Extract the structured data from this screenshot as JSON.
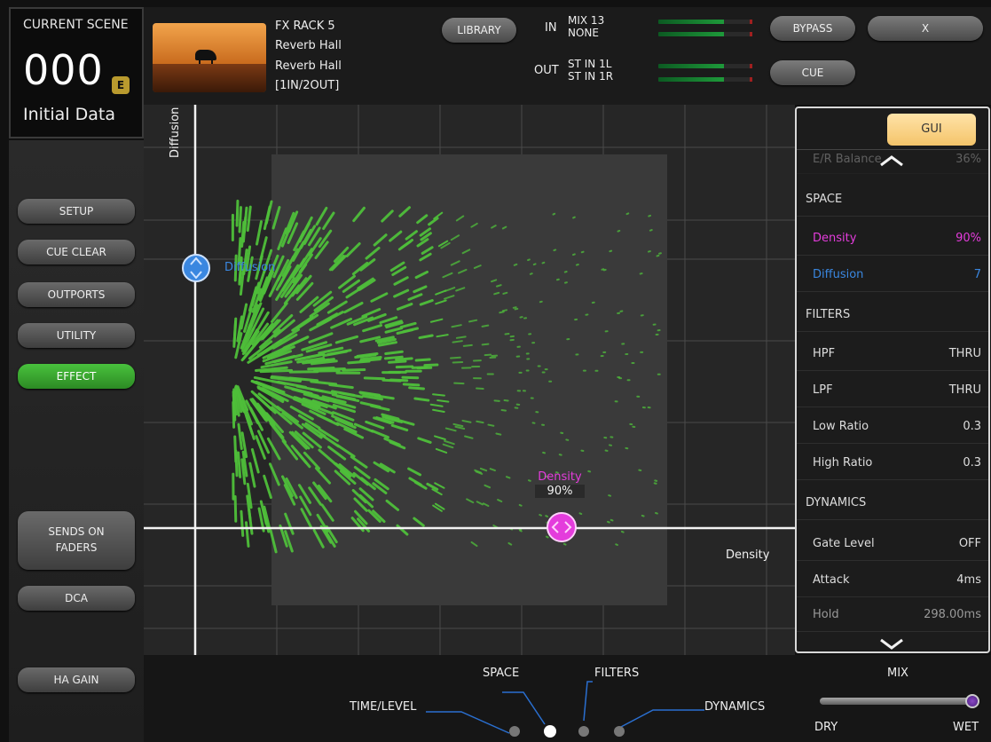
{
  "scene": {
    "label": "CURRENT SCENE",
    "number": "000",
    "badge": "E",
    "name": "Initial Data"
  },
  "left_buttons": {
    "setup": "SETUP",
    "cue_clear": "CUE CLEAR",
    "outports": "OUTPORTS",
    "utility": "UTILITY",
    "effect": "EFFECT",
    "sends_on_faders_1": "SENDS ON",
    "sends_on_faders_2": "FADERS",
    "dca": "DCA",
    "ha_gain": "HA GAIN"
  },
  "header": {
    "rack": "FX RACK 5",
    "type": "Reverb Hall",
    "preset": "Reverb Hall",
    "io_config": "[1IN/2OUT]",
    "library": "LIBRARY",
    "in_label": "IN",
    "in_1": "MIX 13",
    "in_2": "NONE",
    "out_label": "OUT",
    "out_1": "ST IN 1L",
    "out_2": "ST IN 1R",
    "bypass": "BYPASS",
    "close": "X",
    "cue": "CUE"
  },
  "graph": {
    "y_axis": "Diffusion",
    "x_axis": "Density",
    "diffusion_handle_label": "Diffusion",
    "density_handle_label": "Density",
    "density_handle_value": "90%",
    "density_level": 0.9,
    "diffusion_level": 7,
    "colors": {
      "reverb": "#4fbf3a",
      "density": "#e43cdc",
      "diffusion": "#3a87e0"
    }
  },
  "panel": {
    "gui_button": "GUI",
    "partial_row_k": "E/R Balance",
    "partial_row_v": "36%",
    "space_head": "SPACE",
    "density_k": "Density",
    "density_v": "90%",
    "diffusion_k": "Diffusion",
    "diffusion_v": "7",
    "filters_head": "FILTERS",
    "hpf_k": "HPF",
    "hpf_v": "THRU",
    "lpf_k": "LPF",
    "lpf_v": "THRU",
    "lowratio_k": "Low Ratio",
    "lowratio_v": "0.3",
    "highratio_k": "High Ratio",
    "highratio_v": "0.3",
    "dynamics_head": "DYNAMICS",
    "gate_k": "Gate Level",
    "gate_v": "OFF",
    "attack_k": "Attack",
    "attack_v": "4ms",
    "hold_k": "Hold",
    "hold_v": "298.00ms"
  },
  "bottom": {
    "space": "SPACE",
    "filters": "FILTERS",
    "time_level": "TIME/LEVEL",
    "dynamics": "DYNAMICS",
    "mix": "MIX",
    "dry": "DRY",
    "wet": "WET",
    "mix_level": 1.0
  }
}
